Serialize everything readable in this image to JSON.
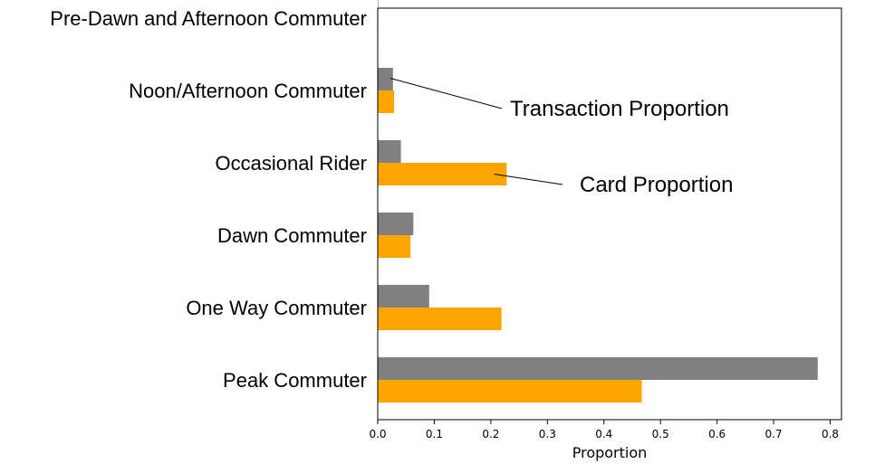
{
  "chart_data": {
    "type": "bar",
    "orientation": "horizontal",
    "title": "",
    "xlabel": "Proportion",
    "ylabel": "",
    "xlim": [
      0,
      0.82
    ],
    "xticks": [
      0.0,
      0.1,
      0.2,
      0.3,
      0.4,
      0.5,
      0.6,
      0.7,
      0.8
    ],
    "xtick_labels": [
      "0.0",
      "0.1",
      "0.2",
      "0.3",
      "0.4",
      "0.5",
      "0.6",
      "0.7",
      "0.8"
    ],
    "grid": false,
    "legend": "none",
    "categories": [
      "Peak Commuter",
      "One Way Commuter",
      "Dawn Commuter",
      "Occasional Rider",
      "Noon/Afternoon Commuter",
      "Pre-Dawn and Afternoon Commuter"
    ],
    "series": [
      {
        "name": "Transaction Proportion",
        "color": "#808080",
        "values": [
          0.778,
          0.091,
          0.063,
          0.041,
          0.027,
          0.001
        ]
      },
      {
        "name": "Card Proportion",
        "color": "#FFA500",
        "values": [
          0.467,
          0.219,
          0.058,
          0.228,
          0.029,
          0.001
        ]
      }
    ],
    "annotations": [
      {
        "text": "Transaction Proportion",
        "series": 0,
        "category": "Noon/Afternoon Commuter"
      },
      {
        "text": "Card Proportion",
        "series": 1,
        "category": "Occasional Rider"
      }
    ]
  }
}
